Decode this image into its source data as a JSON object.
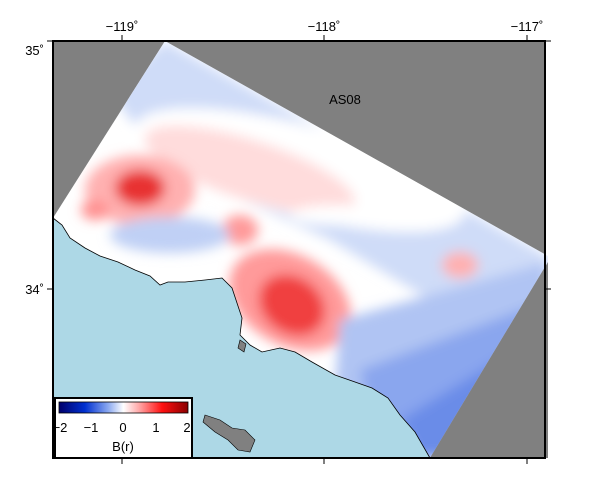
{
  "map": {
    "label": "AS08",
    "lon_ticks": [
      "−119˚",
      "−118˚",
      "−117˚"
    ],
    "lat_ticks": [
      "35˚",
      "34˚"
    ],
    "extent": {
      "lon": [
        -119.33,
        -116.93
      ],
      "lat": [
        33.32,
        35.0
      ]
    },
    "colors": {
      "land_nodata": "#808080",
      "ocean": "#add8e6",
      "positive": "#e00000",
      "negative": "#0010c0"
    }
  },
  "colorbar": {
    "label": "B(r)",
    "ticks": [
      "−2",
      "−1",
      "0",
      "1",
      "2"
    ],
    "range": [
      -2,
      2
    ],
    "colormap": "polar (blue-white-red)"
  }
}
